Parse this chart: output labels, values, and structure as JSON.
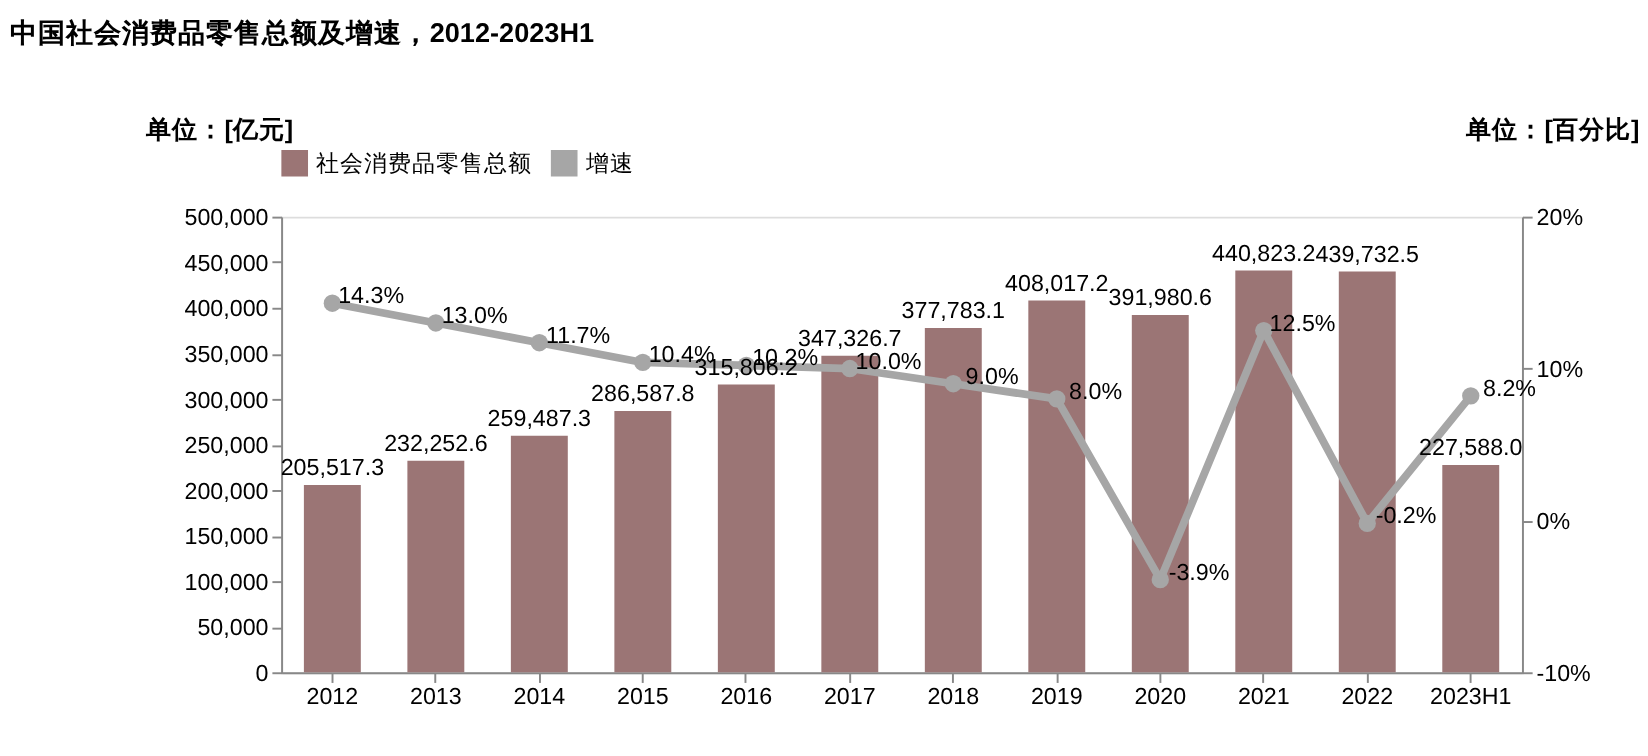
{
  "chart_data": {
    "type": "bar",
    "title": "中国社会消费品零售总额及增速，2012-2023H1",
    "ylabel": "单位：[亿元]",
    "y2label": "单位：[百分比]",
    "categories": [
      "2012",
      "2013",
      "2014",
      "2015",
      "2016",
      "2017",
      "2018",
      "2019",
      "2020",
      "2021",
      "2022",
      "2023H1"
    ],
    "series": [
      {
        "name": "社会消费品零售总额",
        "color": "#9b7575",
        "values": [
          205517.3,
          232252.6,
          259487.3,
          286587.8,
          315806.2,
          347326.7,
          377783.1,
          408017.2,
          391980.6,
          440823.2,
          439732.5,
          227588.0
        ],
        "value_labels": [
          "205,517.3",
          "232,252.6",
          "259,487.3",
          "286,587.8",
          "315,806.2",
          "347,326.7",
          "377,783.1",
          "408,017.2",
          "391,980.6",
          "440,823.2",
          "439,732.5",
          "227,588.0"
        ]
      },
      {
        "name": "增速",
        "type": "line",
        "axis": "y2",
        "color": "#a6a6a6",
        "marker": "circle",
        "values": [
          14.3,
          13.0,
          11.7,
          10.4,
          10.2,
          10.0,
          9.0,
          8.0,
          -3.9,
          12.5,
          -0.2,
          8.2
        ],
        "value_labels": [
          "14.3%",
          "13.0%",
          "11.7%",
          "10.4%",
          "10.2%",
          "10.0%",
          "9.0%",
          "8.0%",
          "-3.9%",
          "12.5%",
          "-0.2%",
          "8.2%"
        ]
      }
    ],
    "ylim": [
      0,
      500000
    ],
    "yticks": [
      {
        "value": 0,
        "label": "0"
      },
      {
        "value": 50000,
        "label": "50,000"
      },
      {
        "value": 100000,
        "label": "100,000"
      },
      {
        "value": 150000,
        "label": "150,000"
      },
      {
        "value": 200000,
        "label": "200,000"
      },
      {
        "value": 250000,
        "label": "250,000"
      },
      {
        "value": 300000,
        "label": "300,000"
      },
      {
        "value": 350000,
        "label": "350,000"
      },
      {
        "value": 400000,
        "label": "400,000"
      },
      {
        "value": 450000,
        "label": "450,000"
      },
      {
        "value": 500000,
        "label": "500,000"
      }
    ],
    "y2lim": [
      -10,
      20
    ],
    "y2ticks": [
      {
        "value": -10,
        "label": "-10%"
      },
      {
        "value": 0,
        "label": "0%"
      },
      {
        "value": 10,
        "label": "10%"
      },
      {
        "value": 20,
        "label": "20%"
      }
    ],
    "grid": false,
    "legend": "top"
  }
}
